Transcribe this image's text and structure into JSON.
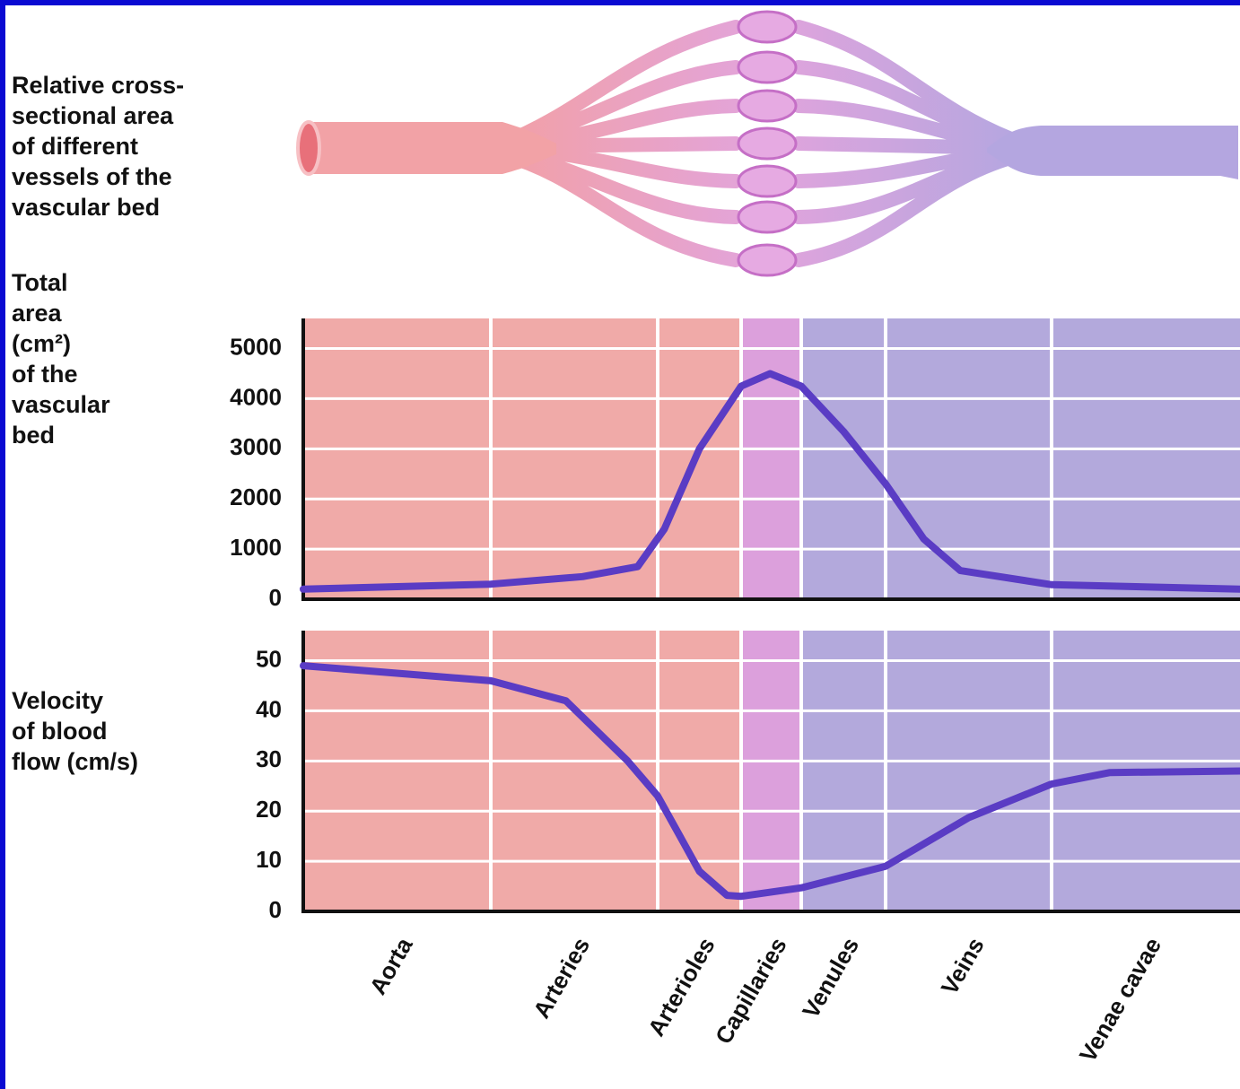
{
  "diagram": {
    "label": [
      "Relative cross-",
      "sectional area",
      "of different",
      "vessels of the",
      "vascular bed"
    ]
  },
  "chart_data": [
    {
      "type": "line",
      "ylabel": [
        "Total",
        "area",
        "(cm²)",
        "of the",
        "vascular",
        "bed"
      ],
      "x": [
        0,
        1,
        1.55,
        1.88,
        2.08,
        2.5,
        3,
        3.48,
        4,
        4.5,
        5,
        5.23,
        5.45,
        6,
        7
      ],
      "xlim": [
        0,
        7
      ],
      "series": [
        {
          "color": "#5a3cc4",
          "values": [
            200,
            300,
            450,
            650,
            1400,
            3000,
            4250,
            4500,
            4250,
            3350,
            2300,
            1200,
            570,
            290,
            200
          ]
        }
      ],
      "ylim": [
        0,
        5600
      ],
      "yticks": [
        0,
        1000,
        2000,
        3000,
        4000,
        5000
      ],
      "grid": true,
      "band_colors": [
        "#f0aaa8",
        "#f0aaa8",
        "#f0aaa8",
        "#dca0dc",
        "#b3a9dc",
        "#b3a9dc",
        "#b3a9dc"
      ]
    },
    {
      "type": "line",
      "ylabel": [
        "Velocity",
        "of blood",
        "flow (cm/s)"
      ],
      "categories": [
        "Aorta",
        "Arteries",
        "Arterioles",
        "Capillaries",
        "Venules",
        "Veins",
        "Venae cavae"
      ],
      "x": [
        0,
        1,
        1.45,
        1.82,
        2,
        2.5,
        2.83,
        3,
        4,
        5,
        5.5,
        6,
        6.31,
        7
      ],
      "xlim": [
        0,
        7
      ],
      "series": [
        {
          "color": "#5a3cc4",
          "values": [
            49,
            46,
            42,
            30,
            23,
            8,
            3.2,
            3,
            4.7,
            9,
            18.7,
            25.4,
            27.7,
            28
          ]
        }
      ],
      "ylim": [
        0,
        56
      ],
      "yticks": [
        0,
        10,
        20,
        30,
        40,
        50
      ],
      "grid": true,
      "band_colors": [
        "#f0aaa8",
        "#f0aaa8",
        "#f0aaa8",
        "#dca0dc",
        "#b3a9dc",
        "#b3a9dc",
        "#b3a9dc"
      ]
    }
  ]
}
